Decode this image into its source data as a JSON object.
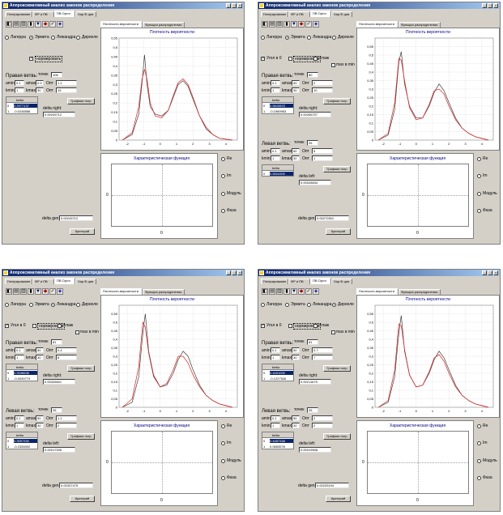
{
  "window": {
    "title": "Аппроксимативный анализ законов распределения",
    "main_tabs": [
      "Генерирование",
      "ФР и ПВ",
      "ПВ Оргог",
      "Хар.Ф-ция"
    ],
    "chart_tabs": [
      "Плотность вероятности",
      "Функция распределения"
    ]
  },
  "common": {
    "polynomials": [
      "Лагерра",
      "Эрмита",
      "Лежандра",
      "Дирихле"
    ],
    "normalize": "нормировать",
    "angle_zero": "Угол в 0",
    "smooth": "сглаж",
    "max_in_min": "max в min",
    "right_branch": "Правая ветвь:",
    "left_branch": "Левая ветвь:",
    "points": "точек",
    "amin": "amin",
    "amax": "amax",
    "kmin": "kmin",
    "kmax": "kmax",
    "oopt": "Опт",
    "beta": "betta",
    "delta_right": "delta right:",
    "delta_left": "delta left:",
    "graph_button": "Графики погр",
    "delta_gen": "delta gen:",
    "criteria_button": "Критерий",
    "density_title": "Плотность вероятности",
    "charfunc_title": "Характеристическая функция",
    "charfunc_y": "0",
    "charfunc_x": "0",
    "charfunc_options": [
      "Re",
      "Im",
      "Модуль",
      "Фаза"
    ]
  },
  "panels": [
    {
      "poly_selected": 1,
      "angle_zero_checked": false,
      "right": {
        "amin": "0.1",
        "amax": "0.9",
        "points": "106",
        "kmin": "1",
        "kmax": "30",
        "opt1": "1.1",
        "opt2": "15",
        "beta_rows": [
          [
            "0",
            "0.2977137"
          ],
          [
            "1",
            "-0.0248558"
          ]
        ],
        "delta": "0.00249712"
      },
      "left": null,
      "delta_gen": "0.00249712"
    },
    {
      "poly_selected": 1,
      "angle_zero_checked": true,
      "right": {
        "amin": "0.1",
        "amax": "50",
        "points": "80",
        "kmin": "1",
        "kmax": "30",
        "opt1": "2",
        "opt2": "10",
        "beta_rows": [
          [
            "0",
            "0.5843823"
          ],
          [
            "1",
            "-0.1969953"
          ]
        ],
        "delta": "0.00256707"
      },
      "left": {
        "amin": "0.1",
        "amax": "50",
        "points": "26",
        "kmin": "1",
        "kmax": "30",
        "opt1": "5",
        "opt2": "1",
        "beta_rows": [
          [
            "0",
            "0.5604300"
          ]
        ],
        "delta": "0.00028634"
      },
      "delta_gen": "0.00272501"
    },
    {
      "poly_selected": 2,
      "angle_zero_checked": true,
      "right": {
        "amin": "0.1",
        "amax": "50",
        "points": "81",
        "kmin": "1",
        "kmax": "30",
        "opt1": "0.4",
        "opt2": "8",
        "beta_rows": [
          [
            "0",
            "0.2538636"
          ],
          [
            "1",
            "-0.0039779"
          ]
        ],
        "delta": "0.00326601"
      },
      "left": {
        "amin": "0.1",
        "amax": "50",
        "points": "26",
        "kmin": "1",
        "kmax": "30",
        "opt1": "1.1",
        "opt2": "2",
        "beta_rows": [
          [
            "0",
            "0.3957330"
          ],
          [
            "1",
            "-0.2326002"
          ]
        ],
        "delta": "0.00017535"
      },
      "delta_gen": "0.00337475"
    },
    {
      "poly_selected": 3,
      "angle_zero_checked": true,
      "right": {
        "amin": "0.1",
        "amax": "50",
        "points": "81",
        "kmin": "1",
        "kmax": "30",
        "opt1": "0.7",
        "opt2": "7",
        "beta_rows": [
          [
            "0",
            "0.4491000"
          ],
          [
            "1",
            "-0.1227526"
          ]
        ],
        "delta": "0.00211675"
      },
      "left": {
        "amin": "0.1",
        "amax": "50",
        "points": "26",
        "kmin": "1",
        "kmax": "30",
        "opt1": "2",
        "opt2": "2",
        "beta_rows": [
          [
            "0",
            "0.4487348"
          ],
          [
            "1",
            "0.0853578"
          ]
        ],
        "delta": "0.00019508"
      },
      "delta_gen": "0.00225194"
    }
  ],
  "chart_data": [
    {
      "type": "line",
      "title": "Плотность вероятности",
      "xlim": [
        -2.5,
        4.7
      ],
      "ylim": [
        0,
        0.55
      ],
      "xticks": [
        -2,
        -1,
        0,
        1,
        2,
        3,
        4
      ],
      "yticks": [
        0,
        0.05,
        0.1,
        0.15,
        0.2,
        0.25,
        0.3,
        0.35,
        0.4,
        0.45,
        0.5,
        0.55
      ],
      "series": [
        {
          "color": "#404040",
          "x": [
            -2.3,
            -1.7,
            -1.3,
            -1.1,
            -0.95,
            -0.8,
            -0.6,
            -0.3,
            0.1,
            0.5,
            0.8,
            1.1,
            1.4,
            1.7,
            2.0,
            2.4,
            2.8,
            3.2,
            3.6,
            4.0,
            4.4
          ],
          "values": [
            0.0,
            0.03,
            0.14,
            0.31,
            0.46,
            0.3,
            0.18,
            0.14,
            0.13,
            0.16,
            0.23,
            0.3,
            0.32,
            0.29,
            0.22,
            0.13,
            0.06,
            0.03,
            0.01,
            0.005,
            0.0
          ]
        },
        {
          "color": "#e02020",
          "x": [
            -2.3,
            -1.7,
            -1.3,
            -1.1,
            -0.95,
            -0.8,
            -0.6,
            -0.3,
            0.1,
            0.5,
            0.8,
            1.1,
            1.4,
            1.7,
            2.0,
            2.4,
            2.8,
            3.2,
            3.6,
            4.0,
            4.4
          ],
          "values": [
            0.0,
            0.04,
            0.18,
            0.33,
            0.38,
            0.33,
            0.2,
            0.13,
            0.12,
            0.16,
            0.24,
            0.31,
            0.33,
            0.3,
            0.23,
            0.13,
            0.07,
            0.03,
            0.01,
            0.005,
            0.0
          ]
        }
      ]
    },
    {
      "type": "line",
      "title": "Плотность вероятности",
      "xlim": [
        -2.5,
        4.7
      ],
      "ylim": [
        0,
        0.6
      ],
      "xticks": [
        -2,
        -1,
        0,
        1,
        2,
        3,
        4
      ],
      "yticks": [
        0,
        0.05,
        0.1,
        0.15,
        0.2,
        0.25,
        0.3,
        0.35,
        0.4,
        0.45,
        0.5,
        0.55
      ],
      "series": [
        {
          "color": "#404040",
          "x": [
            -2.3,
            -1.7,
            -1.3,
            -1.05,
            -0.9,
            -0.7,
            -0.4,
            0.0,
            0.4,
            0.8,
            1.1,
            1.4,
            1.7,
            2.0,
            2.4,
            2.8,
            3.2,
            3.6,
            4.0,
            4.4
          ],
          "values": [
            0.0,
            0.03,
            0.18,
            0.46,
            0.52,
            0.33,
            0.2,
            0.13,
            0.13,
            0.2,
            0.28,
            0.33,
            0.29,
            0.22,
            0.13,
            0.07,
            0.04,
            0.02,
            0.01,
            0.0
          ]
        },
        {
          "color": "#e02020",
          "x": [
            -2.3,
            -1.7,
            -1.3,
            -1.05,
            -0.9,
            -0.7,
            -0.4,
            0.0,
            0.4,
            0.8,
            1.1,
            1.4,
            1.7,
            2.0,
            2.4,
            2.8,
            3.2,
            3.6,
            4.0,
            4.4
          ],
          "values": [
            0.0,
            0.04,
            0.22,
            0.48,
            0.47,
            0.35,
            0.19,
            0.12,
            0.13,
            0.21,
            0.29,
            0.3,
            0.27,
            0.2,
            0.12,
            0.07,
            0.04,
            0.02,
            0.01,
            0.0
          ]
        }
      ]
    },
    {
      "type": "line",
      "title": "Плотность вероятности",
      "xlim": [
        -2.5,
        4.7
      ],
      "ylim": [
        0,
        0.6
      ],
      "xticks": [
        -2,
        -1,
        0,
        1,
        2,
        3,
        4
      ],
      "yticks": [
        0,
        0.05,
        0.1,
        0.15,
        0.2,
        0.25,
        0.3,
        0.35,
        0.4,
        0.45,
        0.5,
        0.55
      ],
      "series": [
        {
          "color": "#404040",
          "x": [
            -2.3,
            -1.7,
            -1.3,
            -1.05,
            -0.9,
            -0.7,
            -0.4,
            0.0,
            0.4,
            0.8,
            1.1,
            1.4,
            1.7,
            2.0,
            2.4,
            2.8,
            3.2,
            3.6,
            4.0,
            4.4
          ],
          "values": [
            0.0,
            0.03,
            0.18,
            0.44,
            0.55,
            0.33,
            0.19,
            0.12,
            0.13,
            0.2,
            0.28,
            0.33,
            0.3,
            0.22,
            0.13,
            0.07,
            0.04,
            0.02,
            0.01,
            0.0
          ]
        },
        {
          "color": "#e02020",
          "x": [
            -2.3,
            -1.7,
            -1.3,
            -1.05,
            -0.9,
            -0.7,
            -0.4,
            0.0,
            0.4,
            0.8,
            1.1,
            1.4,
            1.7,
            2.0,
            2.4,
            2.8,
            3.2,
            3.6,
            4.0,
            4.4
          ],
          "values": [
            0.0,
            0.05,
            0.24,
            0.5,
            0.47,
            0.32,
            0.18,
            0.12,
            0.14,
            0.22,
            0.3,
            0.3,
            0.26,
            0.19,
            0.12,
            0.07,
            0.04,
            0.02,
            0.01,
            0.0
          ]
        }
      ]
    },
    {
      "type": "line",
      "title": "Плотность вероятности",
      "xlim": [
        -2.5,
        4.7
      ],
      "ylim": [
        0,
        0.6
      ],
      "xticks": [
        -2,
        -1,
        0,
        1,
        2,
        3,
        4
      ],
      "yticks": [
        0,
        0.05,
        0.1,
        0.15,
        0.2,
        0.25,
        0.3,
        0.35,
        0.4,
        0.45,
        0.5,
        0.55
      ],
      "series": [
        {
          "color": "#404040",
          "x": [
            -2.3,
            -1.7,
            -1.3,
            -1.05,
            -0.9,
            -0.7,
            -0.4,
            0.0,
            0.4,
            0.8,
            1.1,
            1.4,
            1.7,
            2.0,
            2.4,
            2.8,
            3.2,
            3.6,
            4.0,
            4.4
          ],
          "values": [
            0.0,
            0.03,
            0.18,
            0.44,
            0.54,
            0.33,
            0.19,
            0.12,
            0.13,
            0.2,
            0.28,
            0.33,
            0.29,
            0.22,
            0.13,
            0.07,
            0.04,
            0.02,
            0.01,
            0.0
          ]
        },
        {
          "color": "#e02020",
          "x": [
            -2.3,
            -1.7,
            -1.3,
            -1.05,
            -0.9,
            -0.7,
            -0.4,
            0.0,
            0.4,
            0.8,
            1.1,
            1.4,
            1.7,
            2.0,
            2.4,
            2.8,
            3.2,
            3.6,
            4.0,
            4.4
          ],
          "values": [
            0.0,
            0.04,
            0.22,
            0.49,
            0.48,
            0.34,
            0.19,
            0.12,
            0.13,
            0.21,
            0.29,
            0.31,
            0.27,
            0.2,
            0.12,
            0.07,
            0.04,
            0.02,
            0.01,
            0.0
          ]
        }
      ]
    }
  ]
}
